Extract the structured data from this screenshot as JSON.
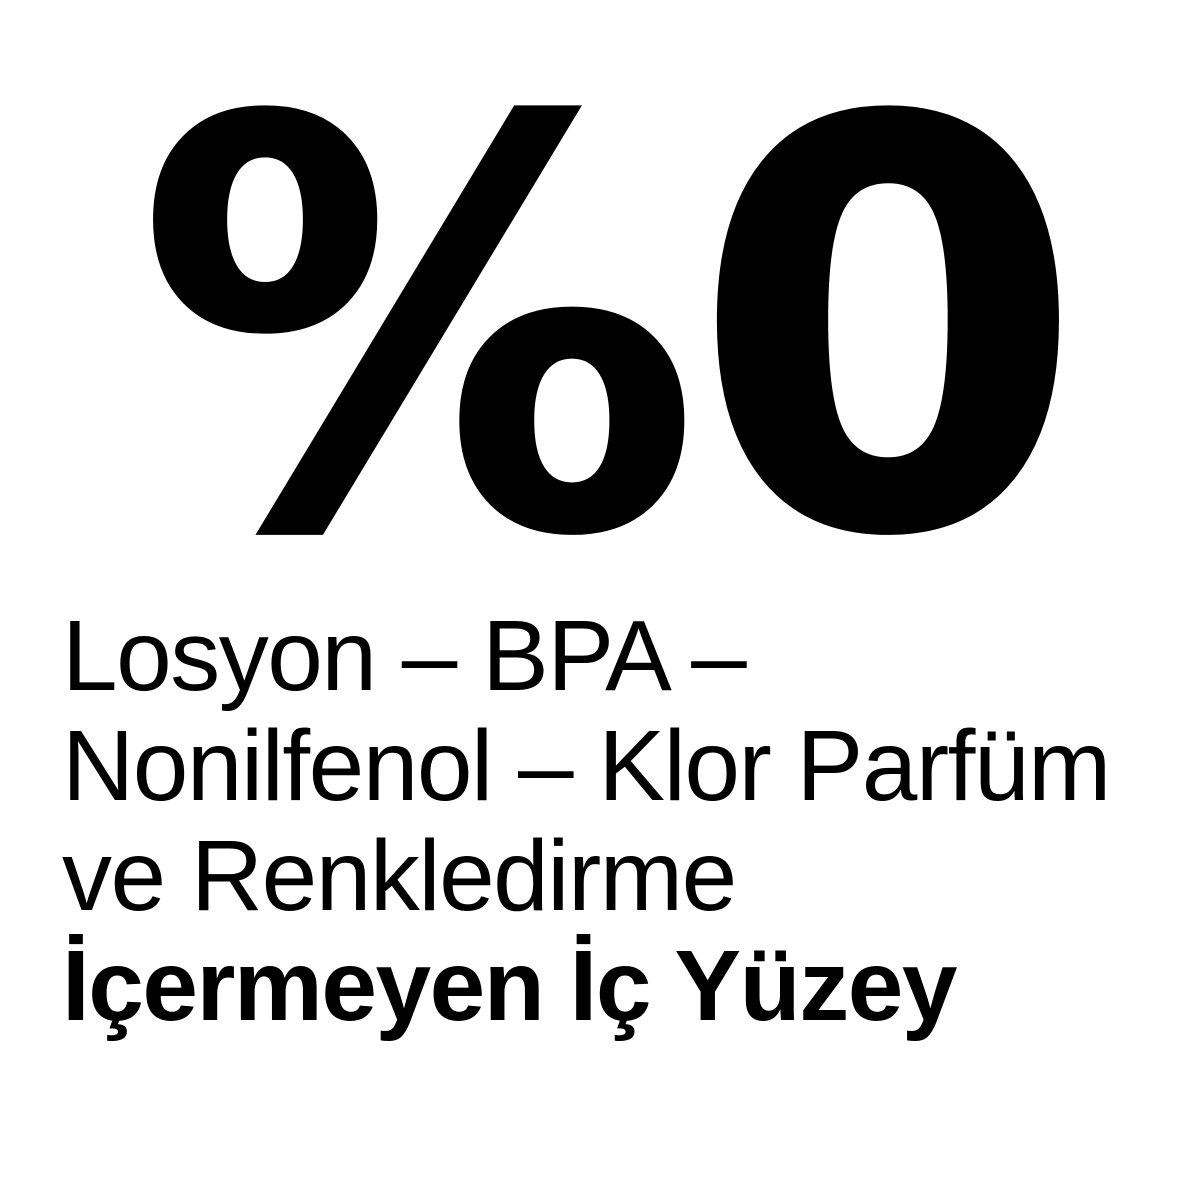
{
  "page": {
    "background_color": "#ffffff",
    "text_color": "#000000"
  },
  "headline": {
    "text": "%0"
  },
  "claims": {
    "lines": [
      "Losyon – BPA –",
      "Nonilfenol – Klor Parfüm",
      "ve Renkledirme"
    ],
    "emphasis": "İçermeyen İç Yüzey"
  }
}
